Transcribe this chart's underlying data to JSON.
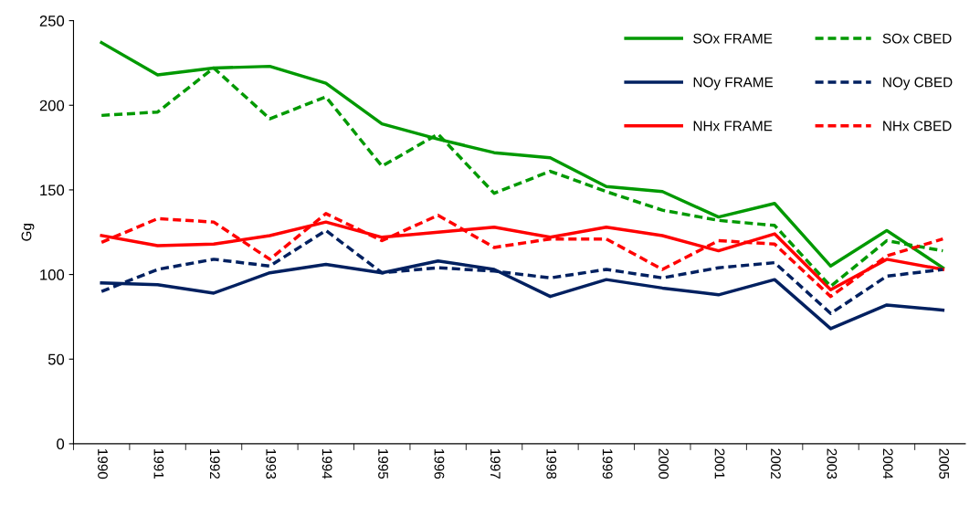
{
  "chart_data": {
    "type": "line",
    "ylabel": "Gg",
    "categories": [
      "1990",
      "1991",
      "1992",
      "1993",
      "1994",
      "1995",
      "1996",
      "1997",
      "1998",
      "1999",
      "2000",
      "2001",
      "2002",
      "2003",
      "2004",
      "2005"
    ],
    "ylim": [
      0,
      250
    ],
    "yticks": [
      0,
      50,
      100,
      150,
      200,
      250
    ],
    "grid": false,
    "legend": "top right",
    "marker": "none",
    "series": [
      {
        "name": "SOx FRAME",
        "color": "#009900",
        "line_style": "solid",
        "values": [
          237,
          218,
          222,
          223,
          213,
          189,
          180,
          172,
          169,
          152,
          149,
          134,
          142,
          105,
          126,
          104
        ]
      },
      {
        "name": "SOx CBED",
        "color": "#009900",
        "line_style": "dashed",
        "values": [
          194,
          196,
          222,
          192,
          205,
          164,
          183,
          148,
          161,
          149,
          138,
          132,
          129,
          93,
          120,
          114
        ]
      },
      {
        "name": "NOy FRAME",
        "color": "#002060",
        "line_style": "solid",
        "values": [
          95,
          94,
          89,
          101,
          106,
          101,
          108,
          103,
          87,
          97,
          92,
          88,
          97,
          68,
          82,
          79
        ]
      },
      {
        "name": "NOy CBED",
        "color": "#002060",
        "line_style": "dashed",
        "values": [
          90,
          103,
          109,
          105,
          126,
          101,
          104,
          102,
          98,
          103,
          98,
          104,
          107,
          77,
          99,
          103
        ]
      },
      {
        "name": "NHx FRAME",
        "color": "#ff0000",
        "line_style": "solid",
        "values": [
          123,
          117,
          118,
          123,
          131,
          122,
          125,
          128,
          122,
          128,
          123,
          114,
          124,
          91,
          109,
          103
        ]
      },
      {
        "name": "NHx CBED",
        "color": "#ff0000",
        "line_style": "dashed",
        "values": [
          119,
          133,
          131,
          109,
          136,
          120,
          135,
          116,
          121,
          121,
          103,
          120,
          118,
          87,
          111,
          121
        ]
      }
    ]
  }
}
